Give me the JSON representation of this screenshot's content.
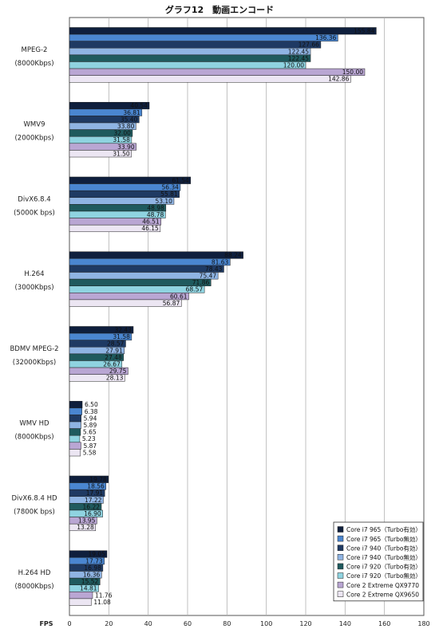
{
  "chart_data": {
    "type": "bar",
    "orientation": "horizontal",
    "title": "グラフ12　動画エンコード",
    "xlabel": "FPS",
    "xlim": [
      0,
      180
    ],
    "xticks": [
      0,
      20,
      40,
      60,
      80,
      100,
      120,
      140,
      160,
      180
    ],
    "grid": true,
    "legend_position": "bottom-right",
    "categories": [
      [
        "MPEG-2",
        "(8000Kbps)"
      ],
      [
        "WMV9",
        "(2000Kbps)"
      ],
      [
        "DivX6.8.4",
        "(5000K bps)"
      ],
      [
        "H.264",
        "(3000Kbps)"
      ],
      [
        "BDMV MPEG-2",
        "(32000Kbps)"
      ],
      [
        "WMV HD",
        "(8000Kbps)"
      ],
      [
        "DivX6.8.4 HD",
        "(7800K bps)"
      ],
      [
        "H.264 HD",
        "(8000Kbps)"
      ]
    ],
    "series": [
      {
        "name": "Core i7 965（Turbo有効）",
        "color": "#0f1f3d",
        "values": [
          155.84,
          40.54,
          61.54,
          88.24,
          32.43,
          6.5,
          19.78,
          19.05
        ]
      },
      {
        "name": "Core i7 965（Turbo無効）",
        "color": "#4a86d0",
        "values": [
          136.36,
          36.81,
          56.34,
          81.63,
          31.58,
          6.38,
          18.56,
          17.73
        ]
      },
      {
        "name": "Core i7 940（Turbo有効）",
        "color": "#1f3a63",
        "values": [
          127.66,
          35.4,
          55.81,
          78.43,
          28.57,
          5.94,
          17.91,
          16.98
        ]
      },
      {
        "name": "Core i7 940（Turbo無効）",
        "color": "#8fb4e3",
        "values": [
          122.45,
          33.8,
          53.1,
          75.47,
          27.91,
          5.89,
          17.22,
          16.36
        ]
      },
      {
        "name": "Core i7 920（Turbo有効）",
        "color": "#1f5a5e",
        "values": [
          122.45,
          32.0,
          48.98,
          71.86,
          27.48,
          5.65,
          16.22,
          15.52
        ]
      },
      {
        "name": "Core i7 920（Turbo無効）",
        "color": "#8fd3e0",
        "values": [
          120.0,
          31.58,
          48.78,
          68.57,
          26.67,
          5.23,
          16.9,
          14.81
        ]
      },
      {
        "name": "Core 2 Extreme QX9770",
        "color": "#b9a6d3",
        "values": [
          150.0,
          33.9,
          46.51,
          60.61,
          29.75,
          5.87,
          13.95,
          11.76
        ]
      },
      {
        "name": "Core 2 Extreme QX9650",
        "color": "#ece6f3",
        "values": [
          142.86,
          31.5,
          46.15,
          56.87,
          28.13,
          5.58,
          13.28,
          11.08
        ]
      }
    ]
  }
}
